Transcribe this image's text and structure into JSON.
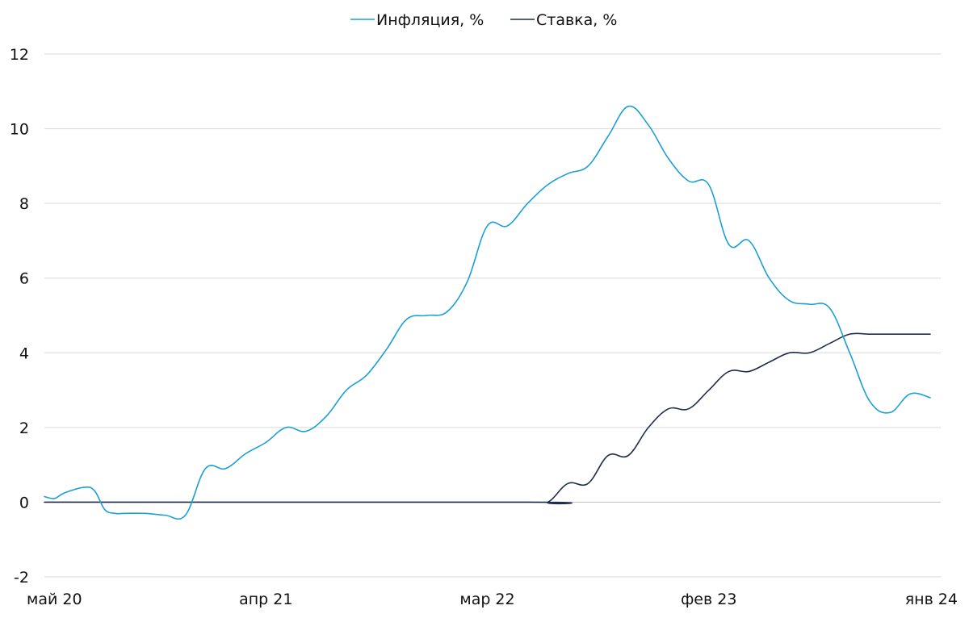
{
  "chart_data": {
    "type": "line",
    "title": "",
    "xlabel": "",
    "ylabel": "",
    "ylim": [
      -2,
      12
    ],
    "yticks": [
      -2,
      0,
      2,
      4,
      6,
      8,
      10,
      12
    ],
    "grid": true,
    "legend_position": "top-center",
    "x_tick_labels": [
      "май 20",
      "апр 21",
      "мар 22",
      "фев 23",
      "янв 24"
    ],
    "x_tick_months": [
      0,
      11,
      22,
      33,
      44
    ],
    "x_range_months": [
      0,
      44
    ],
    "series": [
      {
        "name": "Инфляция, %",
        "color": "#1b9fd6",
        "x": [
          0,
          0.5,
          1,
          2,
          2.5,
          3,
          3.5,
          4,
          5,
          6,
          7,
          8,
          9,
          10,
          11,
          12,
          13,
          14,
          15,
          16,
          17,
          18,
          19,
          20,
          21,
          22,
          23,
          24,
          25,
          26,
          27,
          28,
          29,
          30,
          31,
          32,
          33,
          34,
          35,
          36,
          37,
          38,
          39,
          40,
          41,
          42,
          43,
          44
        ],
        "values": [
          0.15,
          0.1,
          0.25,
          0.4,
          0.3,
          -0.2,
          -0.3,
          -0.3,
          -0.3,
          -0.35,
          -0.35,
          0.9,
          0.9,
          1.3,
          1.6,
          2.0,
          1.9,
          2.3,
          3.0,
          3.4,
          4.1,
          4.9,
          5.0,
          5.1,
          5.9,
          7.4,
          7.4,
          8.0,
          8.5,
          8.8,
          9.0,
          9.8,
          10.6,
          10.1,
          9.2,
          8.6,
          8.5,
          6.9,
          7.0,
          6.0,
          5.4,
          5.3,
          5.2,
          4.0,
          2.7,
          2.4,
          2.9,
          2.8
        ]
      },
      {
        "name": "Ставка, %",
        "color": "#1f2d4d",
        "x": [
          0,
          24,
          25,
          26,
          27,
          28,
          29,
          30,
          31,
          32,
          33,
          34,
          35,
          36,
          37,
          38,
          39,
          40,
          41,
          42,
          43,
          44
        ],
        "values": [
          0,
          0,
          0,
          0.5,
          0.5,
          1.25,
          1.25,
          2.0,
          2.5,
          2.5,
          3.0,
          3.5,
          3.5,
          3.75,
          4.0,
          4.0,
          4.25,
          4.5,
          4.5,
          4.5,
          4.5,
          4.5
        ]
      }
    ]
  }
}
